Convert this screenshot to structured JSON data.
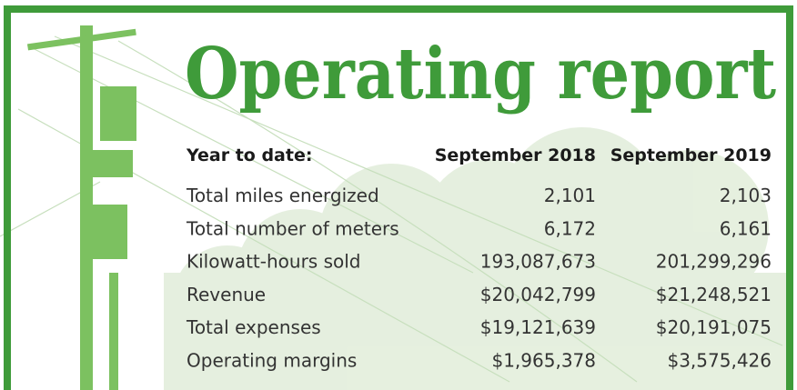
{
  "title": "Operating report",
  "table": {
    "header": [
      "Year to date:",
      "September 2018",
      "September 2019"
    ],
    "rows": [
      [
        "Total miles energized",
        "2,101",
        "2,103"
      ],
      [
        "Total number of meters",
        "6,172",
        "6,161"
      ],
      [
        "Kilowatt-hours sold",
        "193,087,673",
        "201,299,296"
      ],
      [
        "Revenue",
        "$20,042,799",
        "$21,248,521"
      ],
      [
        "Total expenses",
        "$19,121,639",
        "$20,191,075"
      ],
      [
        "Operating margins",
        "$1,965,378",
        "$3,575,426"
      ]
    ]
  }
}
